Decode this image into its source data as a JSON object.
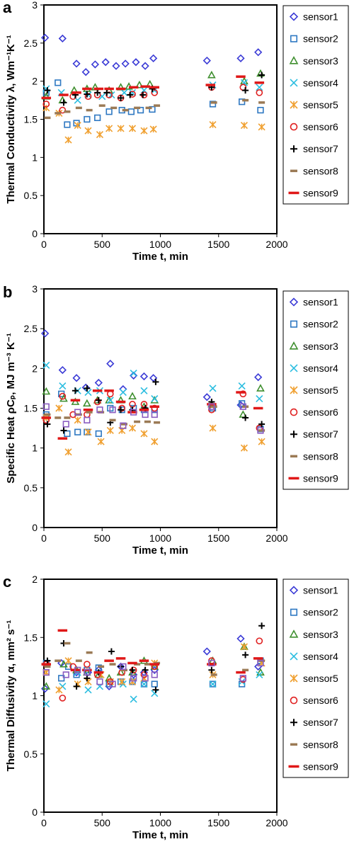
{
  "sensors": [
    "sensor1",
    "sensor2",
    "sensor3",
    "sensor4",
    "sensor5",
    "sensor6",
    "sensor7",
    "sensor8",
    "sensor9"
  ],
  "colors": {
    "sensor1": "#3b3bd6",
    "sensor2": "#2e78c2",
    "sensor3": "#3f8f2f",
    "sensor4": "#2bbde0",
    "sensor5": "#f0a030",
    "sensor6": "#e02020",
    "sensor7": "#000000",
    "sensor8": "#9b7a55",
    "sensor9": "#e01818",
    "extra": "#8a5cc0"
  },
  "markers": {
    "sensor1": "diamond-icon",
    "sensor2": "square-icon",
    "sensor3": "triangle-icon",
    "sensor4": "x-cross-icon",
    "sensor5": "asterisk-icon",
    "sensor6": "circle-icon",
    "sensor7": "plus-icon",
    "sensor8": "short-dash-icon",
    "sensor9": "long-dash-icon",
    "extra": "square-icon"
  },
  "chart_data": [
    {
      "type": "scatter",
      "panel": "a",
      "xlabel": "Time t, min",
      "ylabel": "Thermal Conductivity λ, Wm⁻¹K⁻¹",
      "xlim": [
        0,
        2000
      ],
      "ylim": [
        0,
        3
      ],
      "xticks": [
        0,
        500,
        1000,
        1500,
        2000
      ],
      "yticks": [
        0,
        0.5,
        1,
        1.5,
        2,
        2.5,
        3
      ],
      "ytick_labels": [
        "0",
        "0.5",
        "1",
        "1.5",
        "2",
        "2.5",
        "3"
      ],
      "grid": false,
      "legend": "right",
      "series": [
        {
          "name": "sensor1",
          "x": [
            10,
            160,
            280,
            360,
            440,
            530,
            620,
            700,
            790,
            870,
            940,
            1400,
            1690,
            1840
          ],
          "y": [
            2.57,
            2.56,
            2.23,
            2.12,
            2.22,
            2.25,
            2.2,
            2.23,
            2.25,
            2.2,
            2.3,
            2.27,
            2.3,
            2.38
          ]
        },
        {
          "name": "sensor2",
          "x": [
            20,
            120,
            200,
            280,
            370,
            460,
            560,
            670,
            750,
            830,
            930,
            1450,
            1700,
            1860
          ],
          "y": [
            1.85,
            1.98,
            1.43,
            1.45,
            1.5,
            1.52,
            1.6,
            1.62,
            1.6,
            1.62,
            1.63,
            1.7,
            1.73,
            1.62
          ]
        },
        {
          "name": "sensor3",
          "x": [
            20,
            160,
            260,
            370,
            440,
            560,
            660,
            730,
            820,
            910,
            1440,
            1720,
            1860
          ],
          "y": [
            1.8,
            1.75,
            1.88,
            1.9,
            1.92,
            1.88,
            1.92,
            1.93,
            1.95,
            1.96,
            2.08,
            2.0,
            2.1
          ]
        },
        {
          "name": "sensor4",
          "x": [
            20,
            150,
            290,
            380,
            500,
            580,
            690,
            760,
            860,
            950,
            1450,
            1720,
            1850
          ],
          "y": [
            1.9,
            1.85,
            1.75,
            1.82,
            1.8,
            1.82,
            1.85,
            1.85,
            1.88,
            1.88,
            1.95,
            1.98,
            1.92
          ]
        },
        {
          "name": "sensor5",
          "x": [
            20,
            130,
            210,
            290,
            380,
            480,
            560,
            660,
            760,
            860,
            940,
            1450,
            1720,
            1870
          ],
          "y": [
            1.65,
            1.58,
            1.23,
            1.42,
            1.35,
            1.3,
            1.38,
            1.38,
            1.38,
            1.35,
            1.37,
            1.43,
            1.42,
            1.4
          ]
        },
        {
          "name": "sensor6",
          "x": [
            20,
            160,
            250,
            380,
            460,
            560,
            660,
            760,
            860,
            950,
            1440,
            1710,
            1850
          ],
          "y": [
            1.7,
            1.62,
            1.8,
            1.8,
            1.82,
            1.82,
            1.78,
            1.83,
            1.82,
            1.85,
            1.92,
            1.92,
            1.85
          ]
        },
        {
          "name": "sensor7",
          "x": [
            30,
            170,
            270,
            370,
            460,
            540,
            660,
            740,
            850,
            930,
            1440,
            1730,
            1870
          ],
          "y": [
            1.88,
            1.72,
            1.82,
            1.83,
            1.85,
            1.85,
            1.78,
            1.82,
            1.82,
            1.9,
            1.92,
            1.88,
            2.08
          ]
        },
        {
          "name": "sensor8",
          "x": [
            30,
            120,
            200,
            300,
            390,
            500,
            600,
            700,
            800,
            900,
            970,
            1460,
            1730,
            1870
          ],
          "y": [
            1.52,
            1.58,
            1.6,
            1.65,
            1.62,
            1.68,
            1.65,
            1.62,
            1.65,
            1.65,
            1.68,
            1.72,
            1.75,
            1.72
          ]
        },
        {
          "name": "sensor9",
          "x": [
            20,
            170,
            280,
            370,
            470,
            560,
            660,
            770,
            870,
            950,
            1430,
            1690,
            1850
          ],
          "y": [
            1.78,
            1.82,
            1.85,
            1.9,
            1.9,
            1.9,
            1.9,
            1.92,
            1.93,
            1.92,
            1.95,
            2.06,
            1.98
          ]
        }
      ]
    },
    {
      "type": "scatter",
      "panel": "b",
      "xlabel": "Time t, min",
      "ylabel": "Specific Heat ρCₚ, MJ m⁻³ K⁻¹",
      "xlim": [
        0,
        2000
      ],
      "ylim": [
        0,
        3
      ],
      "xticks": [
        0,
        500,
        1000,
        1500,
        2000
      ],
      "yticks": [
        0,
        0.5,
        1,
        1.5,
        2,
        2.5,
        3
      ],
      "ytick_labels": [
        "0",
        "0.5",
        "1",
        "1.5",
        "2",
        "2.5",
        "3"
      ],
      "grid": false,
      "legend": "right",
      "series": [
        {
          "name": "sensor1",
          "x": [
            10,
            160,
            280,
            360,
            470,
            570,
            680,
            770,
            860,
            940,
            1400,
            1690,
            1840
          ],
          "y": [
            2.44,
            1.98,
            1.88,
            1.76,
            1.82,
            2.06,
            1.74,
            1.91,
            1.9,
            1.88,
            1.64,
            1.54,
            1.89
          ]
        },
        {
          "name": "sensor2",
          "x": [
            20,
            150,
            200,
            290,
            370,
            470,
            570,
            670,
            770,
            860,
            950,
            1450,
            1700,
            1860
          ],
          "y": [
            1.42,
            1.68,
            1.18,
            1.2,
            1.2,
            1.18,
            1.5,
            1.48,
            1.5,
            1.48,
            1.48,
            1.5,
            1.56,
            1.24
          ]
        },
        {
          "name": "sensor3",
          "x": [
            20,
            170,
            270,
            370,
            460,
            560,
            660,
            760,
            860,
            950,
            1440,
            1710,
            1860
          ],
          "y": [
            1.71,
            1.62,
            1.58,
            1.56,
            1.6,
            1.6,
            1.6,
            1.65,
            1.52,
            1.6,
            1.55,
            1.42,
            1.75
          ]
        },
        {
          "name": "sensor4",
          "x": [
            20,
            160,
            290,
            380,
            480,
            570,
            680,
            770,
            860,
            950,
            1450,
            1700,
            1850
          ],
          "y": [
            2.04,
            1.78,
            1.72,
            1.7,
            1.72,
            1.6,
            1.7,
            1.94,
            1.72,
            1.62,
            1.75,
            1.78,
            1.62
          ]
        },
        {
          "name": "sensor5",
          "x": [
            20,
            130,
            210,
            290,
            380,
            490,
            570,
            670,
            760,
            860,
            950,
            1450,
            1720,
            1870
          ],
          "y": [
            1.38,
            1.5,
            0.95,
            1.35,
            1.2,
            1.08,
            1.22,
            1.22,
            1.25,
            1.18,
            1.08,
            1.25,
            1.0,
            1.08
          ]
        },
        {
          "name": "sensor6",
          "x": [
            20,
            160,
            250,
            370,
            460,
            570,
            670,
            760,
            860,
            950,
            1440,
            1710,
            1850
          ],
          "y": [
            1.35,
            1.65,
            1.42,
            1.42,
            1.58,
            1.68,
            1.5,
            1.55,
            1.55,
            1.5,
            1.48,
            1.68,
            1.25
          ]
        },
        {
          "name": "sensor7",
          "x": [
            30,
            170,
            270,
            370,
            470,
            570,
            660,
            760,
            870,
            960,
            1440,
            1730,
            1870
          ],
          "y": [
            1.3,
            1.22,
            1.72,
            1.75,
            1.6,
            1.32,
            1.48,
            1.48,
            1.5,
            1.83,
            1.58,
            1.38,
            1.3
          ]
        },
        {
          "name": "sensor8",
          "x": [
            30,
            120,
            200,
            300,
            390,
            490,
            590,
            690,
            800,
            890,
            970,
            1460,
            1730,
            1870
          ],
          "y": [
            1.42,
            1.38,
            1.38,
            1.42,
            1.45,
            1.45,
            1.35,
            1.3,
            1.33,
            1.33,
            1.32,
            1.52,
            1.52,
            1.22
          ]
        },
        {
          "name": "sensor9",
          "x": [
            20,
            160,
            270,
            380,
            460,
            560,
            660,
            760,
            860,
            950,
            1440,
            1690,
            1840
          ],
          "y": [
            1.38,
            1.12,
            1.6,
            1.48,
            1.72,
            1.72,
            1.58,
            1.45,
            1.48,
            1.52,
            1.55,
            1.7,
            1.5
          ]
        },
        {
          "name": "",
          "key": "extra",
          "x": [
            20,
            190,
            290,
            370,
            480,
            590,
            680,
            770,
            870,
            950,
            1440,
            1710,
            1860
          ],
          "y": [
            1.52,
            1.3,
            1.45,
            1.35,
            1.48,
            1.48,
            1.28,
            1.45,
            1.42,
            1.42,
            1.52,
            1.52,
            1.22
          ]
        }
      ]
    },
    {
      "type": "scatter",
      "panel": "c",
      "xlabel": "Time t, min",
      "ylabel": "Thermal Diffusivity α, mm² s⁻¹",
      "xlim": [
        0,
        2000
      ],
      "ylim": [
        0,
        2
      ],
      "xticks": [
        0,
        500,
        1000,
        1500,
        2000
      ],
      "yticks": [
        0,
        0.5,
        1,
        1.5,
        2
      ],
      "ytick_labels": [
        "0",
        "0.5",
        "1",
        "1.5",
        "2"
      ],
      "grid": false,
      "legend": "right",
      "series": [
        {
          "name": "sensor1",
          "x": [
            10,
            150,
            280,
            380,
            470,
            560,
            660,
            770,
            860,
            950,
            1400,
            1690,
            1840
          ],
          "y": [
            1.06,
            1.28,
            1.2,
            1.2,
            1.22,
            1.08,
            1.25,
            1.18,
            1.2,
            1.22,
            1.38,
            1.49,
            1.25
          ]
        },
        {
          "name": "sensor2",
          "x": [
            20,
            150,
            210,
            280,
            370,
            470,
            560,
            660,
            760,
            860,
            950,
            1450,
            1700,
            1860
          ],
          "y": [
            1.28,
            1.15,
            1.25,
            1.18,
            1.22,
            1.24,
            1.1,
            1.12,
            1.12,
            1.1,
            1.1,
            1.1,
            1.1,
            1.3
          ]
        },
        {
          "name": "sensor3",
          "x": [
            20,
            170,
            280,
            370,
            470,
            560,
            660,
            760,
            860,
            950,
            1450,
            1720,
            1860
          ],
          "y": [
            1.08,
            1.27,
            1.22,
            1.2,
            1.18,
            1.15,
            1.2,
            1.2,
            1.3,
            1.25,
            1.3,
            1.42,
            1.2
          ]
        },
        {
          "name": "sensor4",
          "x": [
            20,
            160,
            290,
            380,
            480,
            570,
            680,
            770,
            860,
            950,
            1450,
            1700,
            1850
          ],
          "y": [
            0.93,
            1.08,
            1.2,
            1.05,
            1.08,
            1.12,
            1.1,
            0.97,
            1.1,
            1.02,
            1.1,
            1.12,
            1.18
          ]
        },
        {
          "name": "sensor5",
          "x": [
            20,
            130,
            210,
            290,
            380,
            490,
            570,
            670,
            760,
            860,
            950,
            1450,
            1720,
            1870
          ],
          "y": [
            1.2,
            1.05,
            1.3,
            1.1,
            1.12,
            1.18,
            1.12,
            1.12,
            1.12,
            1.15,
            1.28,
            1.18,
            1.42,
            1.28
          ]
        },
        {
          "name": "sensor6",
          "x": [
            20,
            160,
            250,
            370,
            460,
            570,
            670,
            770,
            860,
            950,
            1440,
            1710,
            1850
          ],
          "y": [
            1.27,
            0.98,
            1.25,
            1.27,
            1.18,
            1.12,
            1.2,
            1.22,
            1.18,
            1.25,
            1.3,
            1.14,
            1.47
          ]
        },
        {
          "name": "sensor7",
          "x": [
            30,
            170,
            280,
            370,
            470,
            580,
            660,
            760,
            870,
            960,
            1440,
            1730,
            1870
          ],
          "y": [
            1.3,
            1.45,
            1.08,
            1.15,
            1.2,
            1.38,
            1.25,
            1.22,
            1.22,
            1.05,
            1.22,
            1.35,
            1.6
          ]
        },
        {
          "name": "sensor8",
          "x": [
            30,
            120,
            200,
            300,
            390,
            490,
            590,
            690,
            800,
            890,
            970,
            1460,
            1730,
            1870
          ],
          "y": [
            1.25,
            1.3,
            1.45,
            1.3,
            1.37,
            1.25,
            1.27,
            1.22,
            1.27,
            1.27,
            1.28,
            1.18,
            1.22,
            1.3
          ]
        },
        {
          "name": "sensor9",
          "x": [
            20,
            160,
            270,
            370,
            470,
            560,
            660,
            760,
            860,
            950,
            1440,
            1690,
            1840
          ],
          "y": [
            1.27,
            1.56,
            1.22,
            1.22,
            1.2,
            1.3,
            1.32,
            1.28,
            1.3,
            1.27,
            1.27,
            1.2,
            1.32
          ]
        },
        {
          "name": "",
          "key": "extra",
          "x": [
            20,
            190,
            290,
            370,
            480,
            590,
            680,
            770,
            870,
            950,
            1440,
            1710,
            1860
          ],
          "y": [
            1.2,
            1.18,
            1.22,
            1.2,
            1.12,
            1.1,
            1.25,
            1.15,
            1.15,
            1.18,
            1.28,
            1.15,
            1.28
          ]
        }
      ]
    }
  ]
}
